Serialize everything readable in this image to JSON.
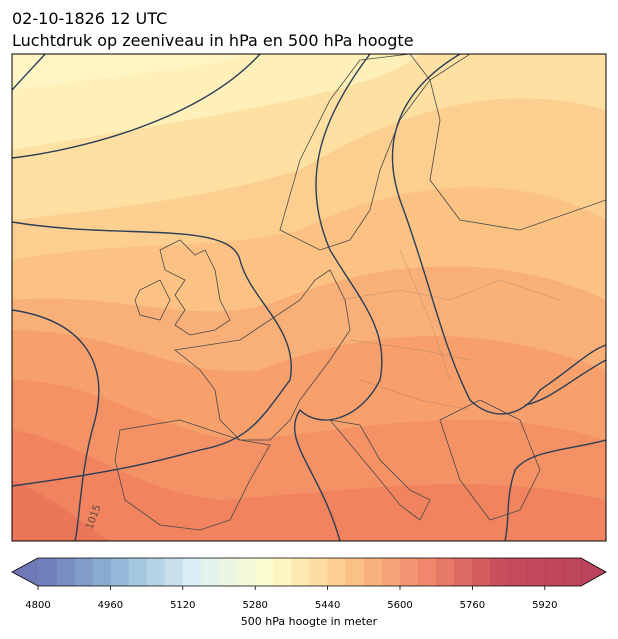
{
  "title": "02-10-1826 12 UTC",
  "subtitle": "Luchtdruk op zeeniveau in hPa en 500 hPa hoogte",
  "contour_label": "1015",
  "colorbar": {
    "label": "500 hPa hoogte in meter",
    "range": [
      4800,
      6000
    ],
    "step": 40,
    "ticks": [
      4800,
      4960,
      5120,
      5280,
      5440,
      5600,
      5760,
      5920
    ],
    "colormap": [
      "#5e6aae",
      "#84aed2",
      "#d6edf4",
      "#fefec6",
      "#fbc07c",
      "#ef7a5c",
      "#c2394a",
      "#b4304a"
    ]
  }
}
